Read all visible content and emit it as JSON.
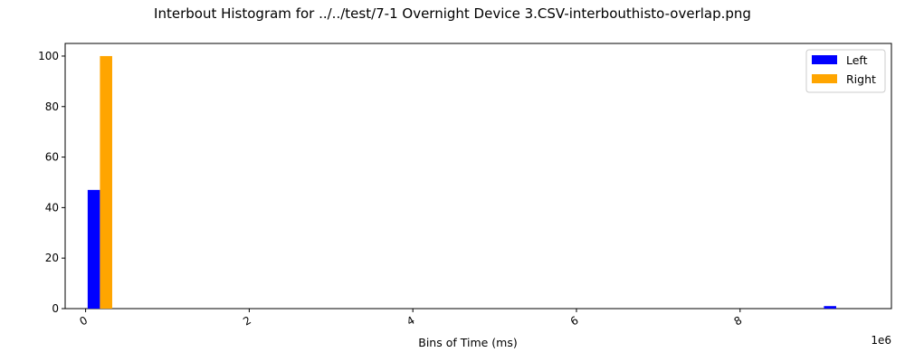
{
  "chart_data": {
    "type": "bar",
    "title": "Interbout Histogram for ../../test/7-1 Overnight Device 3.CSV-interbouthisto-overlap.png",
    "xlabel": "Bins of Time (ms)",
    "ylabel": "",
    "x_offset_label": "1e6",
    "xlim": [
      -250000,
      9850000
    ],
    "ylim": [
      0,
      105
    ],
    "x_ticks": [
      0,
      2000000,
      4000000,
      6000000,
      8000000
    ],
    "x_tick_labels": [
      "0",
      "2",
      "4",
      "6",
      "8"
    ],
    "y_ticks": [
      0,
      20,
      40,
      60,
      80,
      100
    ],
    "y_tick_labels": [
      "0",
      "20",
      "40",
      "60",
      "80",
      "100"
    ],
    "bin_width": 150000,
    "grid": false,
    "legend_position": "top-right",
    "series": [
      {
        "name": "Left",
        "color": "#0000ff",
        "bars": [
          {
            "x": 100000,
            "value": 47
          },
          {
            "x": 9100000,
            "value": 1
          }
        ]
      },
      {
        "name": "Right",
        "color": "#ffa500",
        "bars": [
          {
            "x": 250000,
            "value": 100
          }
        ]
      }
    ]
  }
}
